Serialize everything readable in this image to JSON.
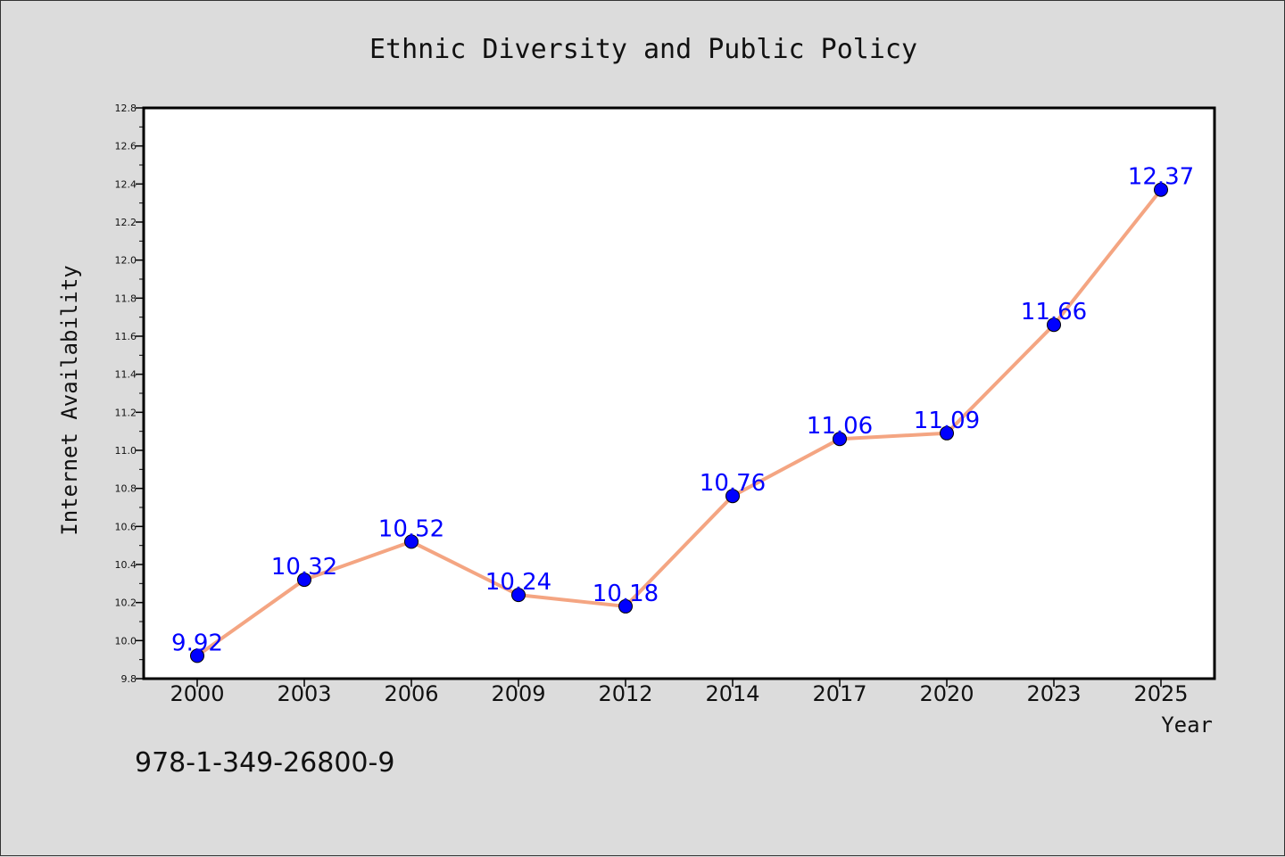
{
  "chart_data": {
    "type": "line",
    "title": "Ethnic Diversity and Public Policy",
    "xlabel": "Year",
    "ylabel": "Internet Availability",
    "categories": [
      "2000",
      "2003",
      "2006",
      "2009",
      "2012",
      "2014",
      "2017",
      "2020",
      "2023",
      "2025"
    ],
    "series": [
      {
        "values": [
          9.92,
          10.32,
          10.52,
          10.24,
          10.18,
          10.76,
          11.06,
          11.09,
          11.66,
          12.37
        ],
        "line_color": "#f4a582",
        "marker_color": "#0000ff"
      }
    ],
    "data_labels": [
      "9.92",
      "10.32",
      "10.52",
      "10.24",
      "10.18",
      "10.76",
      "11.06",
      "11.09",
      "11.66",
      "12.37"
    ],
    "ylim": [
      9.8,
      12.8
    ],
    "yticks": [
      "9.8",
      "10.0",
      "10.2",
      "10.4",
      "10.6",
      "10.8",
      "11.0",
      "11.2",
      "11.4",
      "11.6",
      "11.8",
      "12.0",
      "12.2",
      "12.4",
      "12.6",
      "12.8"
    ],
    "grid": false,
    "label_color": "#0000ff"
  },
  "annotation": "978-1-349-26800-9"
}
